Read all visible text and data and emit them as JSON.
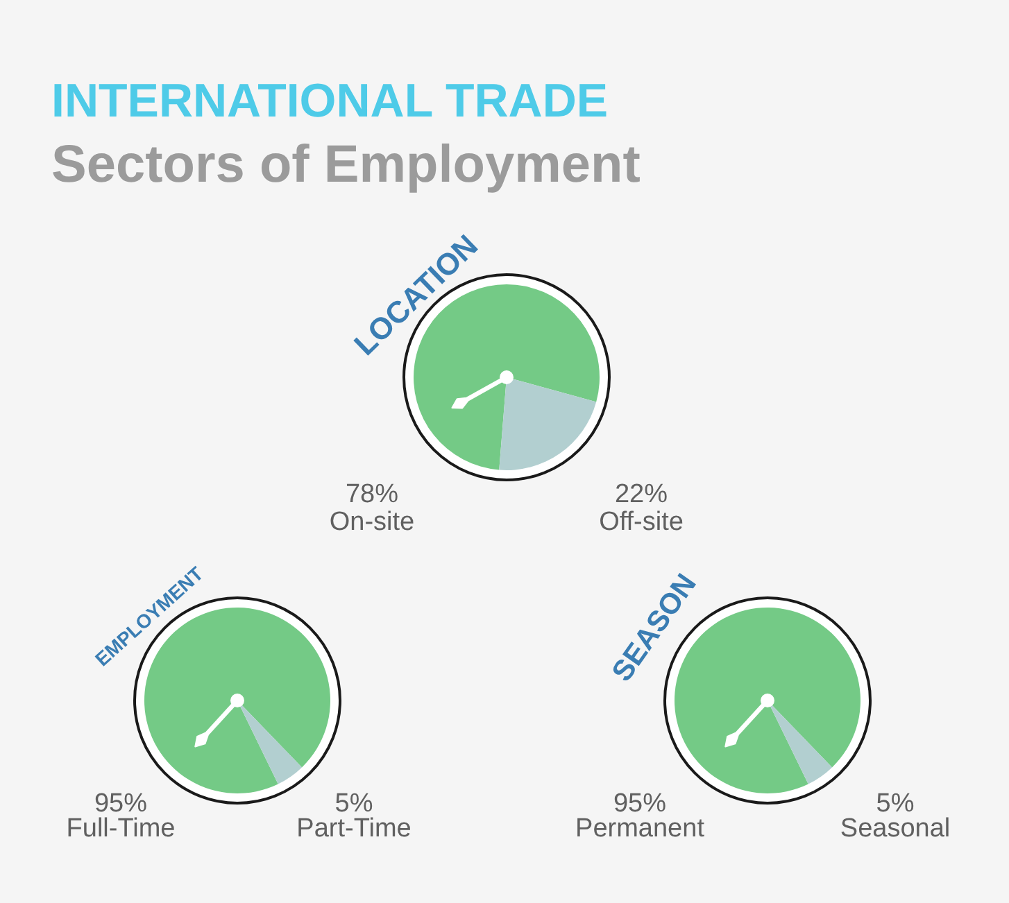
{
  "chart_data": [
    {
      "type": "other",
      "title": "INTERNATIONAL TRADE",
      "subtitle": "Sectors of Employment"
    },
    {
      "type": "pie",
      "title": "LOCATION",
      "categories": [
        "On-site",
        "Off-site"
      ],
      "values": [
        78,
        22
      ],
      "colors": [
        "#74ca86",
        "#b2cfd0"
      ],
      "value_labels": [
        "78%",
        "22%"
      ],
      "needle": "On-site"
    },
    {
      "type": "pie",
      "title": "EMPLOYMENT",
      "categories": [
        "Full-Time",
        "Part-Time"
      ],
      "values": [
        95,
        5
      ],
      "colors": [
        "#74ca86",
        "#b2cfd0"
      ],
      "value_labels": [
        "95%",
        "5%"
      ],
      "needle": "Full-Time"
    },
    {
      "type": "pie",
      "title": "SEASON",
      "categories": [
        "Permanent",
        "Seasonal"
      ],
      "values": [
        95,
        5
      ],
      "colors": [
        "#74ca86",
        "#b2cfd0"
      ],
      "value_labels": [
        "95%",
        "5%"
      ],
      "needle": "Permanent"
    }
  ]
}
